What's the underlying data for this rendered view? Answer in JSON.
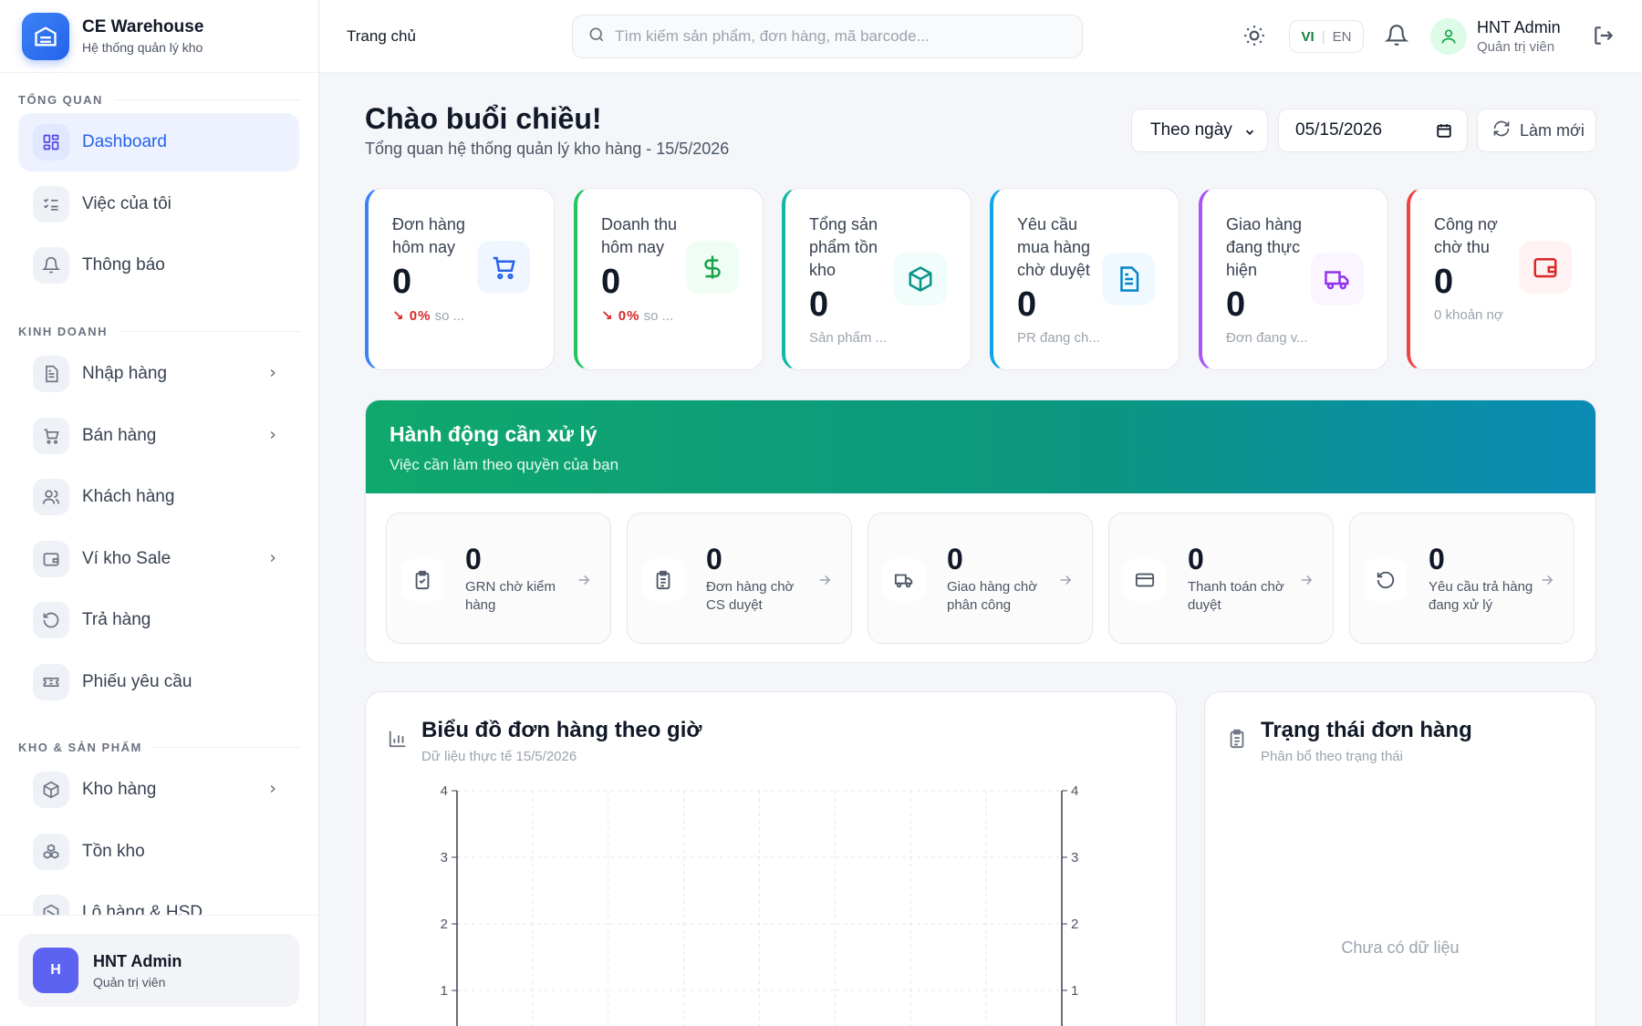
{
  "brand": {
    "title": "CE Warehouse",
    "subtitle": "Hệ thống quản lý kho"
  },
  "sidebar": {
    "sections": [
      {
        "label": "TỔNG QUAN"
      },
      {
        "label": "KINH DOANH"
      },
      {
        "label": "KHO & SẢN PHẨM"
      }
    ],
    "items": [
      {
        "label": "Dashboard",
        "icon": "dashboard-icon",
        "active": true
      },
      {
        "label": "Việc của tôi",
        "icon": "task-list-icon"
      },
      {
        "label": "Thông báo",
        "icon": "bell-icon"
      },
      {
        "label": "Nhập hàng",
        "icon": "document-icon",
        "has_children": true
      },
      {
        "label": "Bán hàng",
        "icon": "cart-icon",
        "has_children": true
      },
      {
        "label": "Khách hàng",
        "icon": "users-icon"
      },
      {
        "label": "Ví kho Sale",
        "icon": "wallet-icon",
        "has_children": true
      },
      {
        "label": "Trả hàng",
        "icon": "return-icon"
      },
      {
        "label": "Phiếu yêu cầu",
        "icon": "ticket-icon"
      },
      {
        "label": "Kho hàng",
        "icon": "box-icon",
        "has_children": true
      },
      {
        "label": "Tồn kho",
        "icon": "boxes-icon"
      },
      {
        "label": "Lô hàng & HSD",
        "icon": "batch-icon"
      }
    ],
    "footer": {
      "avatar_letter": "H",
      "name": "HNT Admin",
      "role": "Quản trị viên"
    }
  },
  "header": {
    "breadcrumb": "Trang chủ",
    "search_placeholder": "Tìm kiếm sản phẩm, đơn hàng, mã barcode...",
    "lang_vi": "VI",
    "lang_sep": "|",
    "lang_en": "EN",
    "user_name": "HNT Admin",
    "user_role": "Quản trị viên"
  },
  "main": {
    "greeting": "Chào buổi chiều!",
    "subtitle": "Tổng quan hệ thống quản lý kho hàng - 15/5/2026",
    "period_select": "Theo ngày",
    "date_value": "05/15/2026",
    "refresh_label": "Làm mới"
  },
  "stats": [
    {
      "title": "Đơn hàng hôm nay",
      "value": "0",
      "trend": "↘ 0%",
      "sub": "so ...",
      "color": "#3b82f6",
      "icon": "cart-icon"
    },
    {
      "title": "Doanh thu hôm nay",
      "value": "0",
      "trend": "↘ 0%",
      "sub": "so ...",
      "color": "#22c55e",
      "icon": "dollar-icon"
    },
    {
      "title": "Tổng sản phẩm tồn kho",
      "value": "0",
      "sub": "Sản phẩm ...",
      "color": "#14b8a6",
      "icon": "box-icon"
    },
    {
      "title": "Yêu cầu mua hàng chờ duyệt",
      "value": "0",
      "sub": "PR đang ch...",
      "color": "#0ea5e9",
      "icon": "document-icon"
    },
    {
      "title": "Giao hàng đang thực hiện",
      "value": "0",
      "sub": "Đơn đang v...",
      "color": "#a855f7",
      "icon": "truck-icon"
    },
    {
      "title": "Công nợ chờ thu",
      "value": "0",
      "sub": "0 khoản nợ",
      "color": "#ef4444",
      "icon": "wallet-icon"
    }
  ],
  "actions": {
    "title": "Hành động cần xử lý",
    "subtitle": "Việc cần làm theo quyền của bạn",
    "items": [
      {
        "value": "0",
        "label": "GRN chờ kiểm hàng",
        "icon": "clipboard-check-icon"
      },
      {
        "value": "0",
        "label": "Đơn hàng chờ CS duyệt",
        "icon": "clipboard-list-icon"
      },
      {
        "value": "0",
        "label": "Giao hàng chờ phân công",
        "icon": "truck-icon"
      },
      {
        "value": "0",
        "label": "Thanh toán chờ duyệt",
        "icon": "card-icon"
      },
      {
        "value": "0",
        "label": "Yêu cầu trả hàng đang xử lý",
        "icon": "return-icon"
      }
    ]
  },
  "hourly_chart": {
    "title": "Biểu đồ đơn hàng theo giờ",
    "subtitle": "Dữ liệu thực tế 15/5/2026"
  },
  "chart_data": {
    "type": "line",
    "series": [],
    "ylim": [
      0,
      4
    ],
    "y_ticks": [
      "4",
      "3",
      "2",
      "1"
    ],
    "y2_ticks": [
      "4",
      "3",
      "2",
      "1"
    ],
    "grid": true
  },
  "status_panel": {
    "title": "Trạng thái đơn hàng",
    "subtitle": "Phân bổ theo trạng thái",
    "empty_text": "Chưa có dữ liệu"
  }
}
